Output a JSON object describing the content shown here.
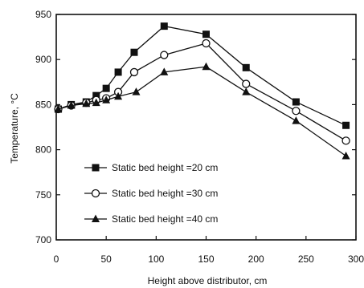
{
  "chart_data": {
    "type": "line",
    "xlabel": "Height above distributor, cm",
    "ylabel": "Temperature, °C",
    "xlim": [
      0,
      300
    ],
    "ylim": [
      700,
      950
    ],
    "xticks": [
      0,
      50,
      100,
      150,
      200,
      250,
      300
    ],
    "yticks": [
      700,
      750,
      800,
      850,
      900,
      950
    ],
    "grid": false,
    "legend_position": "center-left",
    "series": [
      {
        "name": "Static bed height =20 cm",
        "marker": "square-filled",
        "points": [
          [
            2,
            845
          ],
          [
            15,
            850
          ],
          [
            30,
            853
          ],
          [
            40,
            860
          ],
          [
            50,
            868
          ],
          [
            62,
            886
          ],
          [
            78,
            908
          ],
          [
            108,
            937
          ],
          [
            150,
            928
          ],
          [
            190,
            891
          ],
          [
            240,
            853
          ],
          [
            290,
            827
          ]
        ]
      },
      {
        "name": "Static bed height =30 cm",
        "marker": "circle-open",
        "points": [
          [
            2,
            845
          ],
          [
            15,
            849
          ],
          [
            30,
            852
          ],
          [
            40,
            855
          ],
          [
            50,
            857
          ],
          [
            62,
            864
          ],
          [
            78,
            886
          ],
          [
            108,
            905
          ],
          [
            150,
            918
          ],
          [
            190,
            873
          ],
          [
            240,
            843
          ],
          [
            290,
            810
          ]
        ]
      },
      {
        "name": "Static bed height =40 cm",
        "marker": "triangle-filled",
        "points": [
          [
            2,
            845
          ],
          [
            15,
            849
          ],
          [
            30,
            851
          ],
          [
            40,
            852
          ],
          [
            50,
            855
          ],
          [
            62,
            859
          ],
          [
            80,
            864
          ],
          [
            108,
            886
          ],
          [
            150,
            892
          ],
          [
            190,
            864
          ],
          [
            240,
            832
          ],
          [
            290,
            793
          ]
        ]
      }
    ]
  }
}
